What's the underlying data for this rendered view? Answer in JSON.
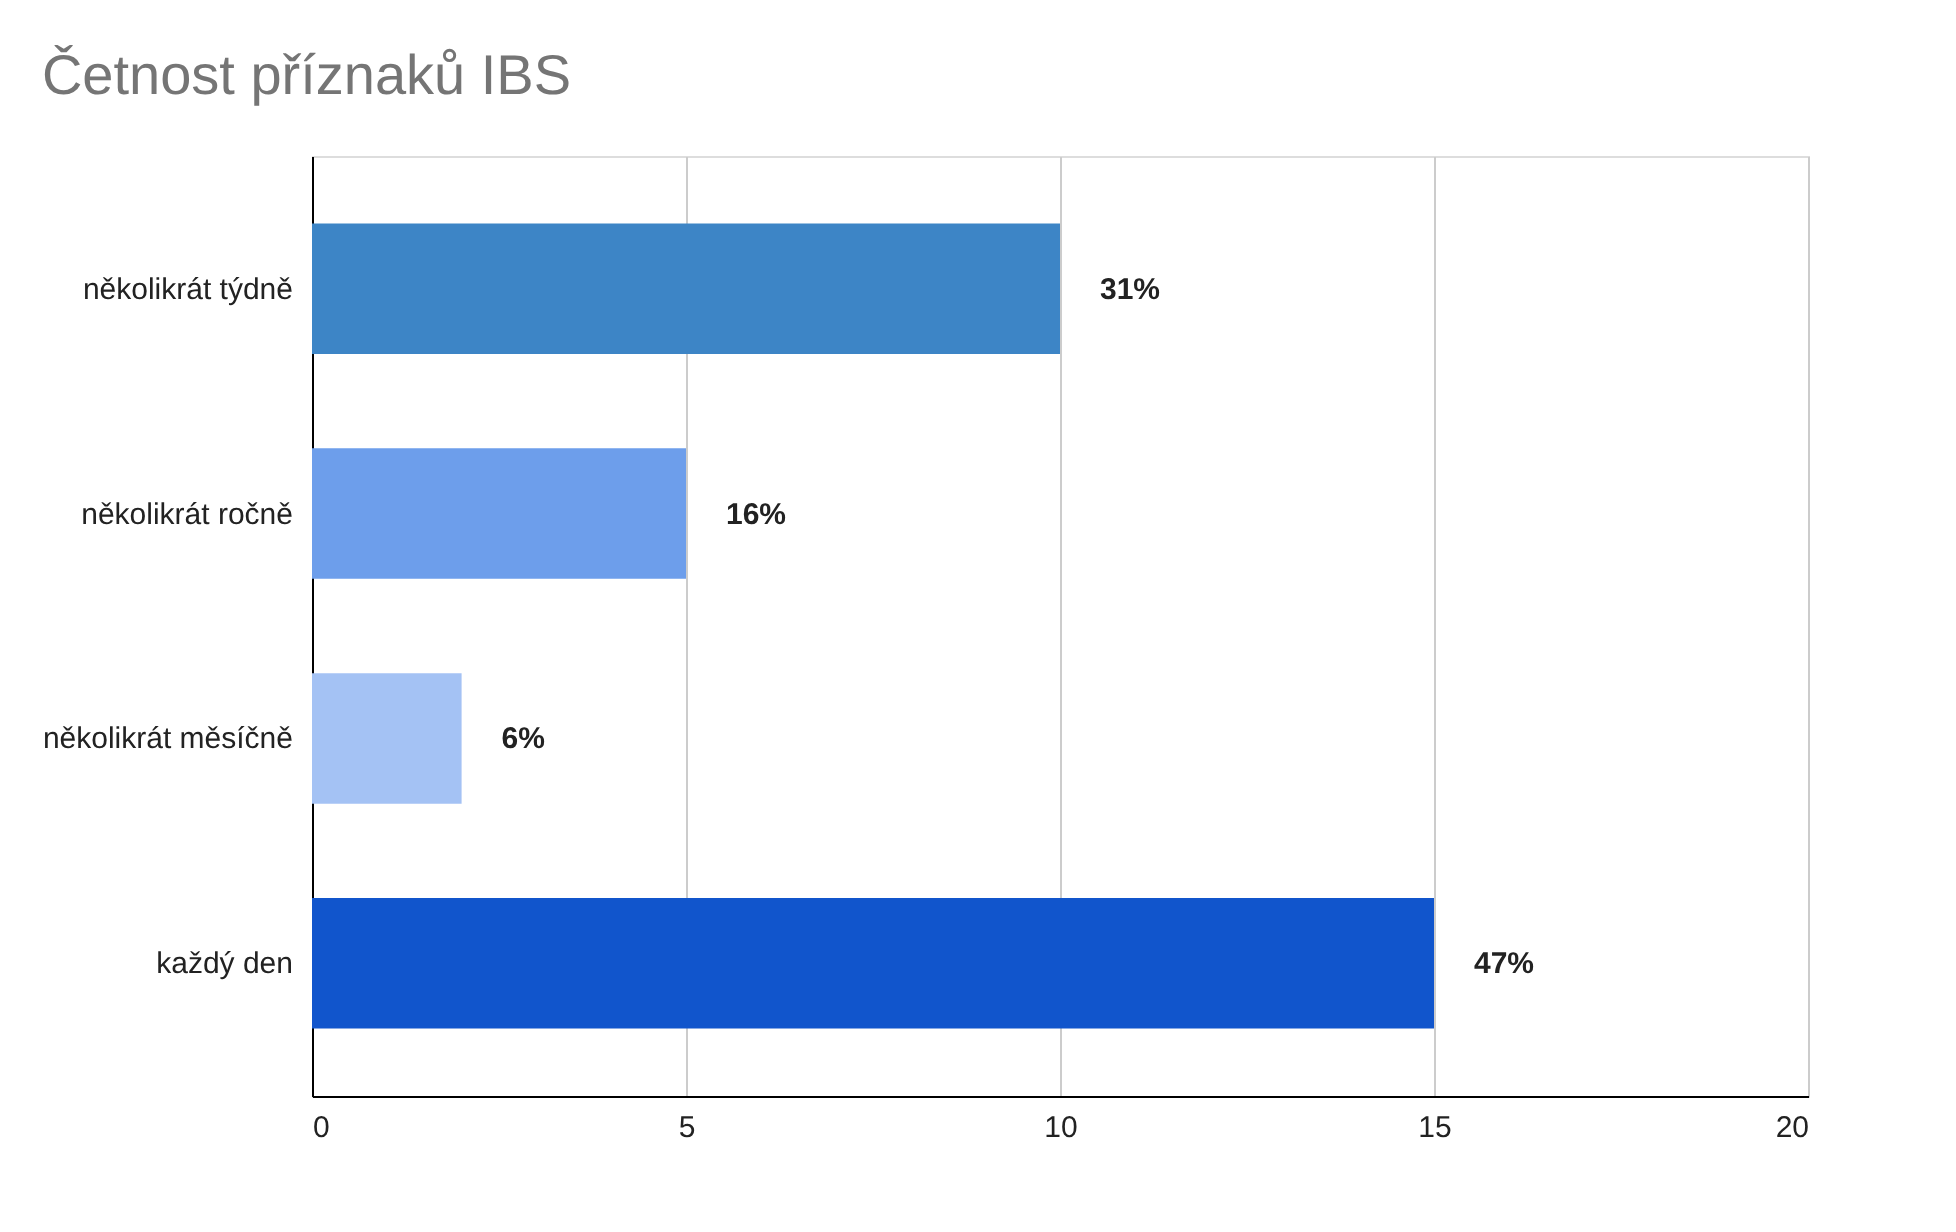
{
  "chart_data": {
    "type": "bar",
    "orientation": "horizontal",
    "title": "Četnost příznaků IBS",
    "categories": [
      "několikrát týdně",
      "několikrát ročně",
      "několikrát měsíčně",
      "každý den"
    ],
    "values": [
      10,
      5,
      2,
      15
    ],
    "colors": [
      "#3d85c6",
      "#6d9eeb",
      "#a4c2f4",
      "#1155cc"
    ],
    "annotations": [
      {
        "text": "31%",
        "x": 10,
        "y": "několikrát týdně"
      },
      {
        "text": "16%",
        "x": 5,
        "y": "několikrát ročně"
      },
      {
        "text": "6%",
        "x": 2,
        "y": "několikrát měsíčně"
      },
      {
        "text": "47%",
        "x": 15,
        "y": "každý den"
      }
    ],
    "xlim": [
      0,
      20
    ],
    "xticks": [
      0,
      5,
      10,
      15,
      20
    ],
    "grid": "x"
  }
}
